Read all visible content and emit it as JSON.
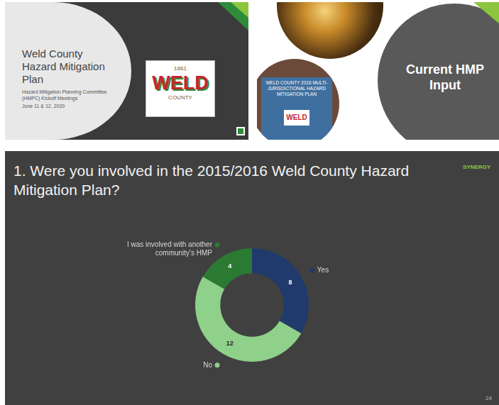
{
  "slides": [
    {
      "title": "Weld County Hazard Mitigation Plan",
      "subtitle": "Hazard Mitigation Planning Committee (HMPC) Kickoff Meetings",
      "date": "June 11 & 12, 2020",
      "logo": {
        "year": "1861",
        "name": "WELD",
        "county": "COUNTY"
      }
    },
    {
      "title": "Current HMP Input",
      "cover": {
        "title": "WELD COUNTY 2016 MULTI-JURISDICTIONAL HAZARD MITIGATION PLAN",
        "logo": "WELD"
      }
    }
  ],
  "chart_slide": {
    "logo": "SYNERGY",
    "page": "24"
  },
  "chart_data": {
    "type": "doughnut",
    "title": "1. Were you involved in the 2015/2016 Weld County Hazard Mitigation Plan?",
    "categories": [
      "Yes",
      "No",
      "I was involved with another community's HMP"
    ],
    "values": [
      8,
      12,
      4
    ],
    "colors": [
      "#1f3a6b",
      "#8fd08a",
      "#2a7a34"
    ],
    "data_labels": true
  }
}
